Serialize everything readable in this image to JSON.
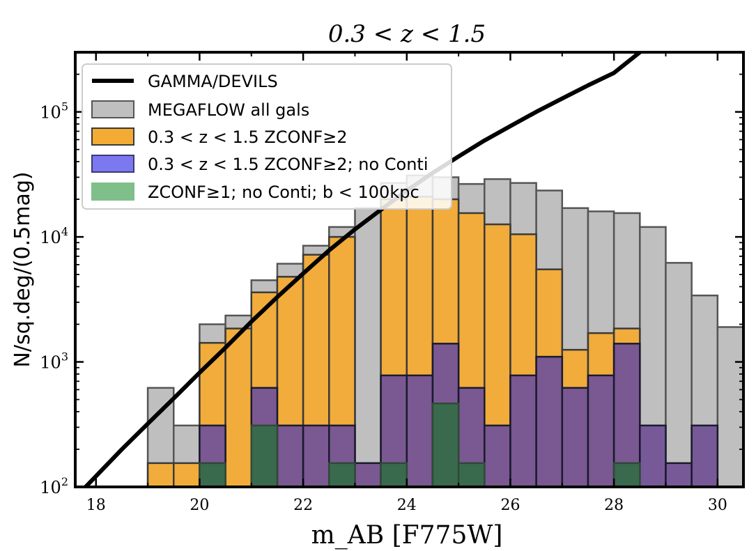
{
  "chart_data": {
    "type": "bar",
    "title": "0.3 < z < 1.5",
    "xlabel": "m_AB [F775W]",
    "ylabel": "N/sq.deg/(0.5mag)",
    "yscale": "log",
    "xlim": [
      17.6,
      30.5
    ],
    "ylim": [
      100,
      300000
    ],
    "x_ticks": [
      "18",
      "20",
      "22",
      "24",
      "26",
      "28",
      "30"
    ],
    "y_ticks": [
      "10^2",
      "10^3",
      "10^4",
      "10^5"
    ],
    "bin_width": 0.5,
    "bin_left_edges": [
      19.0,
      19.5,
      20.0,
      20.5,
      21.0,
      21.5,
      22.0,
      22.5,
      23.0,
      23.5,
      24.0,
      24.5,
      25.0,
      25.5,
      26.0,
      26.5,
      27.0,
      27.5,
      28.0,
      28.5,
      29.0,
      29.5,
      30.0
    ],
    "series": [
      {
        "name": "MEGAFLOW all gals",
        "color": "#bfbfbf",
        "values": [
          620,
          310,
          2000,
          2350,
          4500,
          6100,
          8500,
          12000,
          17000,
          27000,
          31000,
          30000,
          26500,
          29000,
          27000,
          23500,
          17000,
          16000,
          15500,
          12000,
          6200,
          3400,
          1900
        ]
      },
      {
        "name": "0.3 < z < 1.5 ZCONF≥2",
        "color": "#f3ab34",
        "values": [
          155,
          155,
          1420,
          1850,
          3600,
          4800,
          7200,
          10000,
          155,
          20000,
          21000,
          20000,
          15500,
          12600,
          10500,
          5500,
          1250,
          1700,
          1850,
          0,
          0,
          0,
          0
        ]
      },
      {
        "name": "0.3 < z < 1.5 ZCONF≥2; no Conti",
        "color": "#735396",
        "values": [
          0,
          0,
          310,
          0,
          620,
          310,
          310,
          310,
          155,
          780,
          780,
          1400,
          620,
          310,
          780,
          1100,
          620,
          780,
          1400,
          310,
          155,
          310,
          0
        ]
      },
      {
        "name": "ZCONF≥1; no Conti; b < 100kpc",
        "color": "#376c4a",
        "values": [
          0,
          0,
          155,
          0,
          310,
          0,
          0,
          155,
          0,
          155,
          0,
          465,
          155,
          0,
          0,
          0,
          0,
          0,
          155,
          0,
          0,
          0,
          0
        ]
      }
    ],
    "curve": {
      "name": "GAMMA/DEVILS",
      "color": "#000000",
      "x": [
        17.8,
        18.5,
        19.0,
        19.5,
        20.0,
        20.5,
        21.0,
        21.5,
        22.0,
        22.5,
        23.0,
        23.5,
        24.0,
        24.5,
        25.0,
        25.5,
        26.0,
        26.5,
        27.0,
        27.5,
        28.0,
        28.5
      ],
      "y": [
        100,
        200,
        320,
        510,
        820,
        1300,
        2100,
        3300,
        5100,
        7800,
        11500,
        16500,
        23500,
        32500,
        44000,
        59000,
        77000,
        100000,
        128000,
        163000,
        205000,
        300000
      ]
    },
    "legend": {
      "position": "top-left",
      "entries": [
        "GAMMA/DEVILS",
        "MEGAFLOW all gals",
        "0.3 < z < 1.5 ZCONF≥2",
        "0.3 < z < 1.5 ZCONF≥2; no Conti",
        "ZCONF≥1; no Conti; b < 100kpc"
      ]
    }
  }
}
